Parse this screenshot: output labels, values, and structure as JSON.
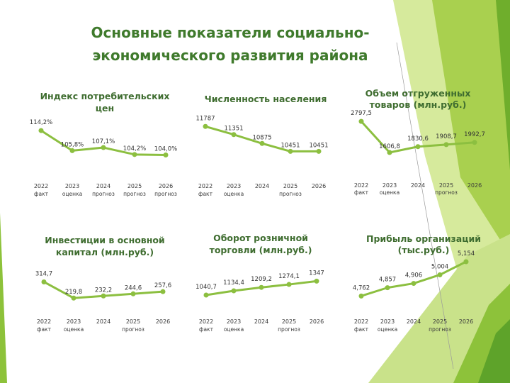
{
  "title": {
    "line1": "Основные показатели социально-",
    "line2": "экономического развития района"
  },
  "colors": {
    "line": "#8cbf40",
    "title": "#3f7a2c",
    "chart_title": "#3f6d30",
    "labels": "#333333",
    "axis_labels": "#3a3a3a",
    "bg_light": "#d6ea9c",
    "bg_mid": "#a9d04f",
    "bg_dark": "#6fae2c"
  },
  "chart_data": [
    {
      "type": "line",
      "title": [
        "Индекс потребительских",
        "цен"
      ],
      "categories": [
        "2022",
        "2023",
        "2024",
        "2025",
        "2026"
      ],
      "sublabels": [
        "факт",
        "оценка",
        "прогноз",
        "прогноз",
        "прогноз"
      ],
      "values": [
        114.2,
        105.8,
        107.1,
        104.2,
        104.0
      ],
      "value_labels": [
        "114,2%",
        "105,8%",
        "107,1%",
        "104,2%",
        "104,0%"
      ],
      "ylim": [
        100,
        116
      ]
    },
    {
      "type": "line",
      "title": [
        "Численность населения"
      ],
      "categories": [
        "2022",
        "2023",
        "2024",
        "2025",
        "2026"
      ],
      "sublabels": [
        "факт",
        "оценка",
        "",
        "прогноз",
        ""
      ],
      "values": [
        11787,
        11351,
        10875,
        10451,
        10451
      ],
      "value_labels": [
        "11787",
        "11351",
        "10875",
        "10451",
        "10451"
      ],
      "ylim": [
        10200,
        11950
      ]
    },
    {
      "type": "line",
      "title": [
        "Объем отгруженных",
        "товаров (млн.руб.)"
      ],
      "categories": [
        "2022",
        "2023",
        "2024",
        "2025",
        "2026"
      ],
      "sublabels": [
        "факт",
        "оценка",
        "",
        "прогноз",
        ""
      ],
      "values": [
        2797.5,
        1606.8,
        1830.6,
        1908.7,
        1992.7
      ],
      "value_labels": [
        "2797,5",
        "1606,8",
        "1830,6",
        "1908,7",
        "1992,7"
      ],
      "ylim": [
        1200,
        3100
      ]
    },
    {
      "type": "line",
      "title": [
        "Инвестиции в основной",
        "капитал (млн.руб.)"
      ],
      "categories": [
        "2022",
        "2023",
        "2024",
        "2025",
        "2026"
      ],
      "sublabels": [
        "факт",
        "оценка",
        "",
        "прогноз",
        ""
      ],
      "values": [
        314.7,
        219.8,
        232.2,
        244.6,
        257.6
      ],
      "value_labels": [
        "314,7",
        "219,8",
        "232,2",
        "244,6",
        "257,6"
      ],
      "ylim": [
        200,
        400
      ]
    },
    {
      "type": "line",
      "title": [
        "Оборот розничной",
        "торговли (млн.руб.)"
      ],
      "categories": [
        "2022",
        "2023",
        "2024",
        "2025",
        "2026"
      ],
      "sublabels": [
        "факт",
        "оценка",
        "",
        "прогноз",
        ""
      ],
      "values": [
        1040.7,
        1134.4,
        1209.2,
        1274.1,
        1347
      ],
      "value_labels": [
        "1040,7",
        "1134,4",
        "1209,2",
        "1274,1",
        "1347"
      ],
      "ylim": [
        900,
        1900
      ]
    },
    {
      "type": "line",
      "title": [
        "Прибыль организаций",
        "(тыс.руб.)"
      ],
      "categories": [
        "2022",
        "2023",
        "2024",
        "2025",
        "2026"
      ],
      "sublabels": [
        "факт",
        "оценка",
        "",
        "прогноз",
        ""
      ],
      "values": [
        4762,
        4857,
        4906,
        5004,
        5154
      ],
      "value_labels": [
        "4,762",
        "4,857",
        "4,906",
        "5,004",
        "5,154"
      ],
      "ylim": [
        4700,
        5170
      ]
    }
  ]
}
